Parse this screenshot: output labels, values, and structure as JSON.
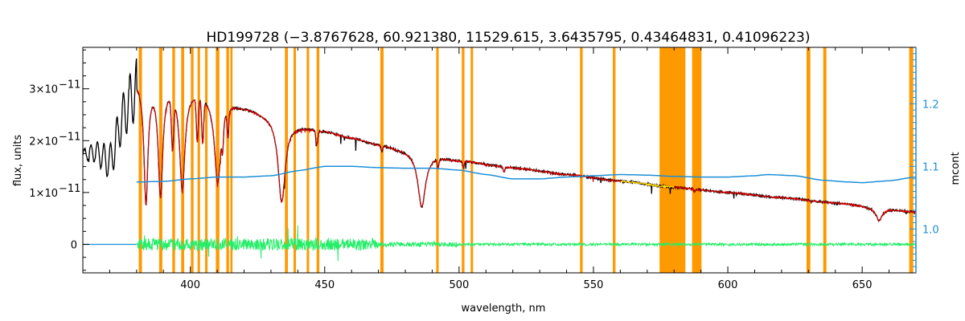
{
  "chart_data": {
    "type": "line",
    "title": "HD199728   (−3.8767628, 60.921380, 11529.615, 3.6435795, 0.43464831, 0.41096223)",
    "xlabel": "wavelength, nm",
    "ylabel": "flux, units",
    "y2label": "mcont",
    "xlim": [
      360,
      670
    ],
    "ylim": [
      -5.5e-12,
      3.8e-11
    ],
    "y2lim": [
      0.93,
      1.29
    ],
    "x_ticks": [
      400,
      450,
      500,
      550,
      600,
      650
    ],
    "x_tick_labels": [
      "400",
      "450",
      "500",
      "550",
      "600",
      "650"
    ],
    "y_ticks": [
      0,
      1e-11,
      2e-11,
      3e-11
    ],
    "y_tick_labels": [
      {
        "mant": "0",
        "exp": ""
      },
      {
        "mant": "1×10",
        "exp": "−11"
      },
      {
        "mant": "2×10",
        "exp": "−11"
      },
      {
        "mant": "3×10",
        "exp": "−11"
      }
    ],
    "y2_ticks": [
      1.0,
      1.1,
      1.2
    ],
    "y2_tick_labels": [
      "1.0",
      "1.1",
      "1.2"
    ],
    "colors": {
      "observed": "#000000",
      "model": "#e60000",
      "fit": "#ffee00",
      "continuum": "#1a8fd6",
      "residual": "#22ee66",
      "masked": "#ff9900",
      "right_axis": "#1a8fd6"
    },
    "masked_regions": [
      [
        380.8,
        382.0
      ],
      [
        388.4,
        389.6
      ],
      [
        393.3,
        394.3
      ],
      [
        396.6,
        397.7
      ],
      [
        400.2,
        401.2
      ],
      [
        402.7,
        403.6
      ],
      [
        405.5,
        406.4
      ],
      [
        409.5,
        410.8
      ],
      [
        413.4,
        414.4
      ],
      [
        414.9,
        415.7
      ],
      [
        435.2,
        436.3
      ],
      [
        438.4,
        439.3
      ],
      [
        443.3,
        444.2
      ],
      [
        447.0,
        448.0
      ],
      [
        470.7,
        471.9
      ],
      [
        491.5,
        492.4
      ],
      [
        501.0,
        502.0
      ],
      [
        504.3,
        505.2
      ],
      [
        545.0,
        546.0
      ],
      [
        557.2,
        558.2
      ],
      [
        574.6,
        584.2
      ],
      [
        586.7,
        590.2
      ],
      [
        629.3,
        630.7
      ],
      [
        635.5,
        636.7
      ],
      [
        667.5,
        669.0
      ]
    ],
    "balmer_lines": [
      {
        "center": 383.5,
        "depth": 0.75,
        "width": 0.9
      },
      {
        "center": 388.9,
        "depth": 0.7,
        "width": 1.0
      },
      {
        "center": 397.0,
        "depth": 0.65,
        "width": 1.2
      },
      {
        "center": 410.2,
        "depth": 0.58,
        "width": 1.4
      },
      {
        "center": 434.0,
        "depth": 0.66,
        "width": 1.6
      },
      {
        "center": 486.1,
        "depth": 0.59,
        "width": 1.7
      },
      {
        "center": 656.3,
        "depth": 0.34,
        "width": 1.4
      }
    ],
    "metal_lines": [
      {
        "center": 393.4,
        "depth": 0.35,
        "width": 0.6
      },
      {
        "center": 402.6,
        "depth": 0.3,
        "width": 0.5
      },
      {
        "center": 404.6,
        "depth": 0.3,
        "width": 0.5
      },
      {
        "center": 412.0,
        "depth": 0.2,
        "width": 0.4
      },
      {
        "center": 414.0,
        "depth": 0.2,
        "width": 0.4
      },
      {
        "center": 447.1,
        "depth": 0.12,
        "width": 0.5
      },
      {
        "center": 471.3,
        "depth": 0.05,
        "width": 0.5
      },
      {
        "center": 492.2,
        "depth": 0.1,
        "width": 0.4
      },
      {
        "center": 501.6,
        "depth": 0.08,
        "width": 0.4
      },
      {
        "center": 516.7,
        "depth": 0.07,
        "width": 0.4
      },
      {
        "center": 587.6,
        "depth": 0.05,
        "width": 0.4
      },
      {
        "center": 631.0,
        "depth": 0.04,
        "width": 0.4
      }
    ],
    "continuum_flux_knots": [
      [
        360,
        1.75
      ],
      [
        365,
        1.78
      ],
      [
        370,
        1.6
      ],
      [
        375,
        2.5
      ],
      [
        378,
        2.9
      ],
      [
        380,
        3.18
      ],
      [
        385,
        3.16
      ],
      [
        390,
        3.12
      ],
      [
        395,
        3.08
      ],
      [
        400,
        3.0
      ],
      [
        405,
        2.92
      ],
      [
        410,
        2.82
      ],
      [
        415,
        2.75
      ],
      [
        420,
        2.66
      ],
      [
        430,
        2.5
      ],
      [
        440,
        2.3
      ],
      [
        450,
        2.19
      ],
      [
        460,
        2.06
      ],
      [
        470,
        1.93
      ],
      [
        480,
        1.82
      ],
      [
        490,
        1.72
      ],
      [
        500,
        1.62
      ],
      [
        520,
        1.48
      ],
      [
        540,
        1.35
      ],
      [
        560,
        1.22
      ],
      [
        580,
        1.1
      ],
      [
        600,
        1.0
      ],
      [
        620,
        0.9
      ],
      [
        640,
        0.8
      ],
      [
        660,
        0.68
      ],
      [
        670,
        0.62
      ]
    ],
    "mcont_knots": [
      [
        380,
        1.075
      ],
      [
        390,
        1.076
      ],
      [
        400,
        1.08
      ],
      [
        410,
        1.083
      ],
      [
        420,
        1.083
      ],
      [
        430,
        1.085
      ],
      [
        440,
        1.093
      ],
      [
        450,
        1.1
      ],
      [
        460,
        1.1
      ],
      [
        470,
        1.098
      ],
      [
        480,
        1.097
      ],
      [
        490,
        1.097
      ],
      [
        500,
        1.094
      ],
      [
        510,
        1.087
      ],
      [
        520,
        1.08
      ],
      [
        530,
        1.08
      ],
      [
        540,
        1.083
      ],
      [
        550,
        1.085
      ],
      [
        560,
        1.087
      ],
      [
        570,
        1.086
      ],
      [
        580,
        1.084
      ],
      [
        590,
        1.083
      ],
      [
        600,
        1.083
      ],
      [
        610,
        1.085
      ],
      [
        615,
        1.087
      ],
      [
        625,
        1.085
      ],
      [
        635,
        1.078
      ],
      [
        645,
        1.075
      ],
      [
        650,
        1.074
      ],
      [
        660,
        1.077
      ],
      [
        670,
        1.083
      ]
    ],
    "observed_x_range": [
      360,
      670
    ],
    "model_x_range": [
      380,
      670
    ],
    "continuum_x_range": [
      380,
      670
    ],
    "residual_x_range": [
      380,
      670
    ]
  }
}
